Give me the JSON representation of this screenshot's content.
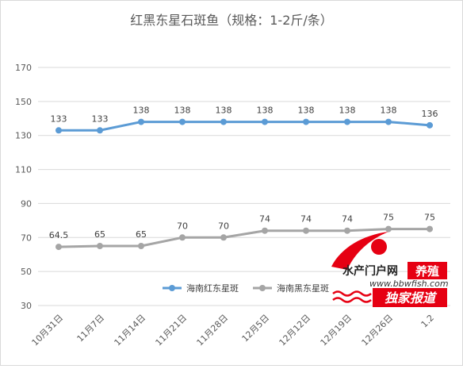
{
  "chart_data": {
    "type": "line",
    "title": "红黑东星石斑鱼（规格：1-2斤/条）",
    "categories": [
      "10月31日",
      "11月7日",
      "11月14日",
      "11月21日",
      "11月28日",
      "12月5日",
      "12月12日",
      "12月19日",
      "12月26日",
      "1.2"
    ],
    "yticks": [
      30,
      50,
      70,
      90,
      110,
      130,
      150,
      170
    ],
    "ylim": [
      30,
      170
    ],
    "grid": true,
    "legend_position": "bottom-center",
    "series": [
      {
        "name": "海南红东星斑",
        "values": [
          133,
          133,
          138,
          138,
          138,
          138,
          138,
          138,
          138,
          136
        ],
        "labels": [
          "133",
          "133",
          "138",
          "138",
          "138",
          "138",
          "138",
          "138",
          "138",
          "136"
        ],
        "color": "#5b9bd5"
      },
      {
        "name": "海南黑东星斑",
        "values": [
          64.5,
          65,
          65,
          70,
          70,
          74,
          74,
          74,
          75,
          75
        ],
        "labels": [
          "64.5",
          "65",
          "65",
          "70",
          "70",
          "74",
          "74",
          "74",
          "75",
          "75"
        ],
        "color": "#a5a5a5"
      }
    ]
  },
  "watermark": {
    "line1_left": "水产门户网",
    "line1_right": "养殖",
    "url": "www.bbwfish.com",
    "badge": "独家报道",
    "accent": "#e60012"
  }
}
